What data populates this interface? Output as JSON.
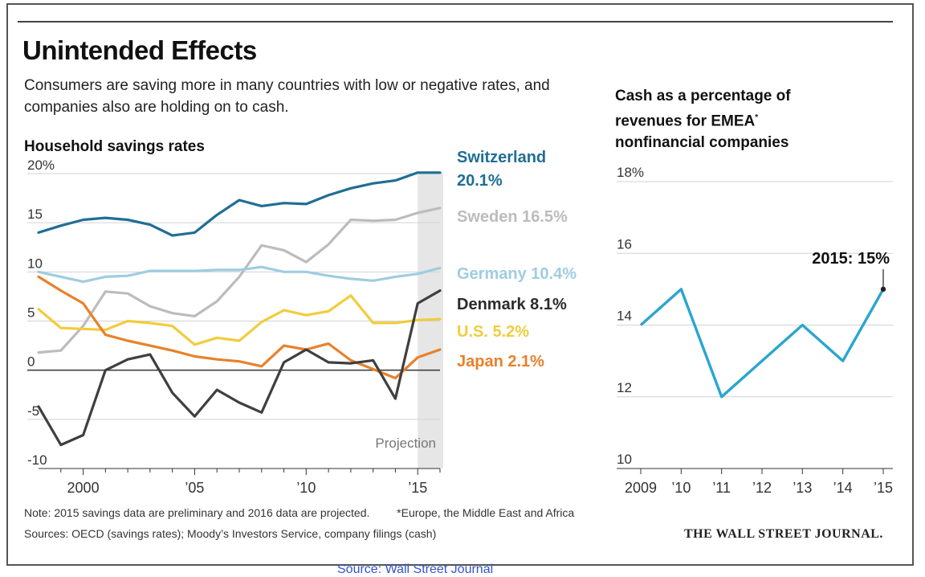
{
  "title": "Unintended Effects",
  "subtitle": "Consumers are saving more in many countries with low or negative rates, and companies also are holding on to cash.",
  "note1": "Note: 2015 savings data are preliminary and 2016 data are projected.",
  "footnote": "*Europe, the Middle East and Africa",
  "sources": "Sources: OECD (savings rates); Moody’s Investors Service, company filings (cash)",
  "publisher": "THE WALL STREET JOURNAL.",
  "caption": "Source: Wall Street Journal",
  "colors": {
    "switzerland": "#1f6e96",
    "sweden": "#bcbcbc",
    "germany": "#9fcde0",
    "denmark": "#3f3f3f",
    "us": "#f2cc3c",
    "japan": "#e8812a",
    "cash": "#29a6cf",
    "projection": "#e6e6e6"
  },
  "chart_data": [
    {
      "type": "line",
      "title": "Household savings rates",
      "x_tick_labels": [
        "2000",
        "’05",
        "’10",
        "’15"
      ],
      "y_tick_labels": [
        "20%",
        "15",
        "10",
        "5",
        "0",
        "-5",
        "-10"
      ],
      "ylim": [
        -10,
        20
      ],
      "xlim": [
        1998,
        2016
      ],
      "projection_label": "Projection",
      "projection_range": [
        2015,
        2016
      ],
      "x": [
        1998,
        1999,
        2000,
        2001,
        2002,
        2003,
        2004,
        2005,
        2006,
        2007,
        2008,
        2009,
        2010,
        2011,
        2012,
        2013,
        2014,
        2015,
        2016
      ],
      "series": [
        {
          "name": "Switzerland",
          "end_label": "20.1%",
          "color_key": "switzerland",
          "values": [
            14.0,
            14.7,
            15.3,
            15.5,
            15.3,
            14.8,
            13.7,
            14.0,
            15.8,
            17.3,
            16.7,
            17.0,
            16.9,
            17.8,
            18.5,
            19.0,
            19.3,
            20.1,
            20.1
          ]
        },
        {
          "name": "Sweden",
          "end_label": "16.5%",
          "color_key": "sweden",
          "values": [
            1.8,
            2.0,
            4.5,
            8.0,
            7.8,
            6.5,
            5.8,
            5.5,
            7.0,
            9.5,
            12.7,
            12.2,
            11.0,
            12.8,
            15.3,
            15.2,
            15.3,
            16.0,
            16.5
          ]
        },
        {
          "name": "Germany",
          "end_label": "10.4%",
          "color_key": "germany",
          "values": [
            10.0,
            9.5,
            9.0,
            9.5,
            9.6,
            10.1,
            10.1,
            10.1,
            10.2,
            10.2,
            10.5,
            10.0,
            10.0,
            9.6,
            9.3,
            9.1,
            9.5,
            9.8,
            10.4
          ]
        },
        {
          "name": "Denmark",
          "end_label": "8.1%",
          "color_key": "denmark",
          "values": [
            -3.7,
            -7.6,
            -6.6,
            0.0,
            1.1,
            1.6,
            -2.3,
            -4.7,
            -2.0,
            -3.3,
            -4.3,
            0.8,
            2.1,
            0.8,
            0.7,
            1.0,
            -2.9,
            6.8,
            8.1
          ]
        },
        {
          "name": "U.S.",
          "end_label": "5.2%",
          "color_key": "us",
          "values": [
            6.2,
            4.3,
            4.2,
            4.1,
            5.0,
            4.8,
            4.5,
            2.6,
            3.3,
            3.0,
            4.9,
            6.1,
            5.6,
            6.0,
            7.6,
            4.8,
            4.8,
            5.1,
            5.2
          ]
        },
        {
          "name": "Japan",
          "end_label": "2.1%",
          "color_key": "japan",
          "values": [
            9.5,
            8.1,
            6.8,
            3.6,
            3.0,
            2.5,
            2.0,
            1.4,
            1.1,
            0.9,
            0.4,
            2.5,
            2.1,
            2.7,
            1.0,
            0.1,
            -0.8,
            1.3,
            2.1
          ]
        }
      ]
    },
    {
      "type": "line",
      "title": "Cash as a percentage of revenues for EMEA* nonfinancial companies",
      "x_tick_labels": [
        "2009",
        "’10",
        "’11",
        "’12",
        "’13",
        "’14",
        "’15"
      ],
      "y_tick_labels": [
        "18%",
        "16",
        "14",
        "12",
        "10"
      ],
      "ylim": [
        10,
        18
      ],
      "x": [
        2009,
        2010,
        2011,
        2012,
        2013,
        2014,
        2015
      ],
      "values": [
        14,
        15,
        12,
        13,
        14,
        13,
        15
      ],
      "annotation": "2015: 15%"
    }
  ]
}
